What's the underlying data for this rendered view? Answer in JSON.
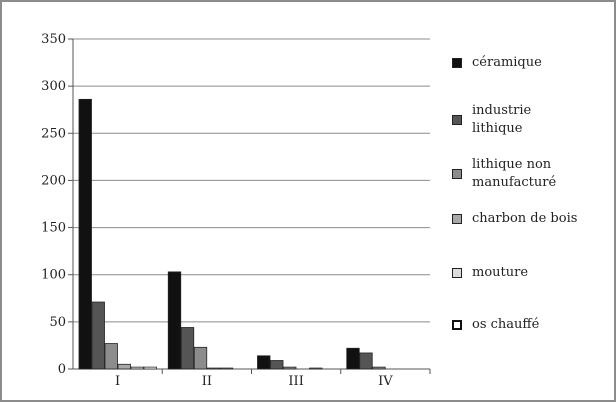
{
  "chart_data": {
    "type": "bar",
    "categories": [
      "I",
      "II",
      "III",
      "IV"
    ],
    "series": [
      {
        "name": "céramique",
        "values": [
          286,
          103,
          14,
          22
        ],
        "color": "#111111"
      },
      {
        "name": "industrie lithique",
        "values": [
          71,
          44,
          9,
          17
        ],
        "color": "#555555"
      },
      {
        "name": "lithique non manufacturé",
        "values": [
          27,
          23,
          2,
          2
        ],
        "color": "#8c8c8c"
      },
      {
        "name": "charbon de bois",
        "values": [
          5,
          1,
          0,
          0
        ],
        "color": "#a8a8a8"
      },
      {
        "name": "mouture",
        "values": [
          2,
          1,
          1,
          0
        ],
        "color": "#dcdcdc"
      },
      {
        "name": "os chauffé",
        "values": [
          2,
          0,
          0,
          0
        ],
        "color": "#ffffff"
      }
    ],
    "y_ticks": [
      "0",
      "50",
      "100",
      "150",
      "200",
      "250",
      "300",
      "350"
    ],
    "ylim": [
      0,
      350
    ],
    "grid": true,
    "legend_position": "right",
    "legend_labels": [
      "céramique",
      "industrie\nlithique",
      "lithique non\nmanufacturé",
      "charbon de bois",
      "mouture",
      "os chauffé"
    ]
  }
}
